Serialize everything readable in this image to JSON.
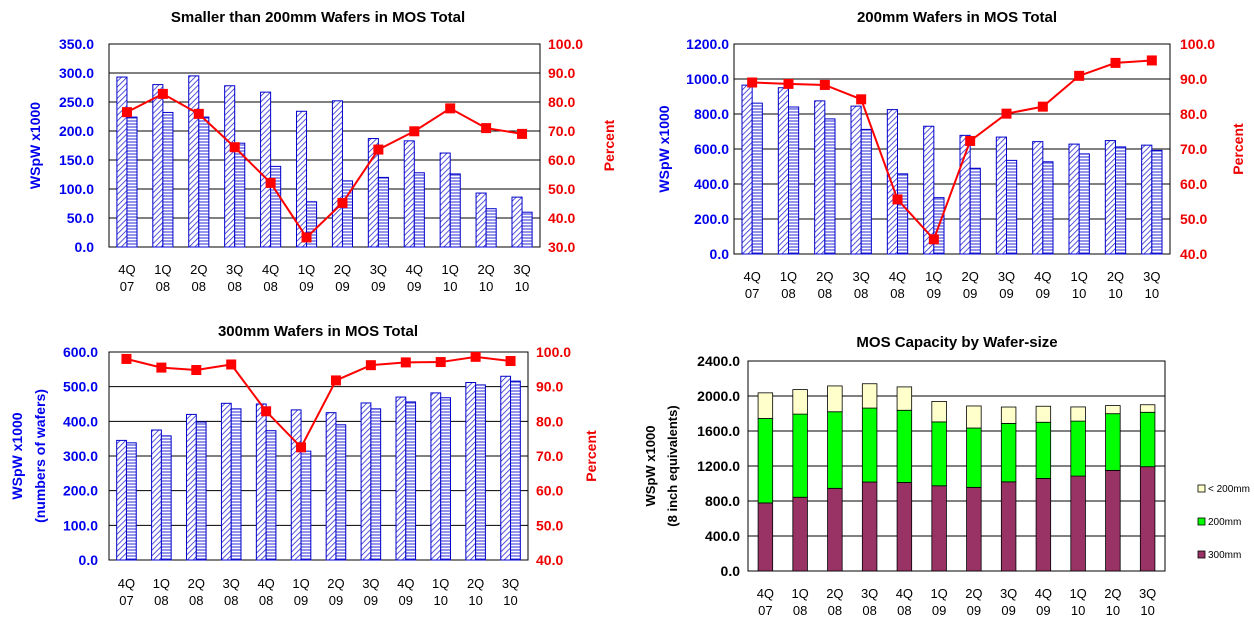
{
  "colors": {
    "bar_fill": "#ffffff",
    "bar_stroke": "#0000cc",
    "hatch": "#2a2ad6",
    "line": "#ff0000",
    "left_axis_text": "#0000ee",
    "right_axis_text": "#ee0000",
    "c300": "#993366",
    "c200": "#00ff00",
    "clt200": "#ffffcc"
  },
  "chart_data": [
    {
      "type": "bar",
      "title": "Smaller than 200mm Wafers in MOS Total",
      "ylabel": "WSpW x1000",
      "y2label": "Percent",
      "categories": [
        [
          "4Q",
          "07"
        ],
        [
          "1Q",
          "08"
        ],
        [
          "2Q",
          "08"
        ],
        [
          "3Q",
          "08"
        ],
        [
          "4Q",
          "08"
        ],
        [
          "1Q",
          "09"
        ],
        [
          "2Q",
          "09"
        ],
        [
          "3Q",
          "09"
        ],
        [
          "4Q",
          "09"
        ],
        [
          "1Q",
          "10"
        ],
        [
          "2Q",
          "10"
        ],
        [
          "3Q",
          "10"
        ]
      ],
      "ylim": [
        0,
        350
      ],
      "yticks": [
        "0.0",
        "50.0",
        "100.0",
        "150.0",
        "200.0",
        "250.0",
        "300.0",
        "350.0"
      ],
      "y2lim": [
        30,
        100
      ],
      "y2ticks": [
        "30.0",
        "40.0",
        "50.0",
        "60.0",
        "70.0",
        "80.0",
        "90.0",
        "100.0"
      ],
      "series": [
        {
          "kind": "bar",
          "hatch": "diag",
          "values": [
            293,
            280,
            295,
            278,
            267,
            234,
            252,
            187,
            183,
            162,
            93,
            86
          ]
        },
        {
          "kind": "bar",
          "hatch": "horiz",
          "values": [
            224,
            232,
            224,
            179,
            139,
            78,
            114,
            120,
            128,
            126,
            66,
            60
          ]
        },
        {
          "kind": "line",
          "axis": "right",
          "values": [
            76.5,
            82.8,
            75.9,
            64.4,
            52.1,
            33.3,
            45.2,
            63.6,
            69.9,
            77.8,
            71.0,
            69.0
          ]
        }
      ]
    },
    {
      "type": "bar",
      "title": "200mm Wafers in MOS Total",
      "ylabel": "WSpW x1000",
      "y2label": "Percent",
      "categories": [
        [
          "4Q",
          "07"
        ],
        [
          "1Q",
          "08"
        ],
        [
          "2Q",
          "08"
        ],
        [
          "3Q",
          "08"
        ],
        [
          "4Q",
          "08"
        ],
        [
          "1Q",
          "09"
        ],
        [
          "2Q",
          "09"
        ],
        [
          "3Q",
          "09"
        ],
        [
          "4Q",
          "09"
        ],
        [
          "1Q",
          "10"
        ],
        [
          "2Q",
          "10"
        ],
        [
          "3Q",
          "10"
        ]
      ],
      "ylim": [
        0,
        1200
      ],
      "yticks": [
        "0.0",
        "200.0",
        "400.0",
        "600.0",
        "800.0",
        "1000.0",
        "1200.0"
      ],
      "y2lim": [
        40,
        100
      ],
      "y2ticks": [
        "40.0",
        "50.0",
        "60.0",
        "70.0",
        "80.0",
        "90.0",
        "100.0"
      ],
      "series": [
        {
          "kind": "bar",
          "hatch": "diag",
          "values": [
            965,
            950,
            875,
            845,
            825,
            730,
            678,
            668,
            642,
            628,
            648,
            622
          ]
        },
        {
          "kind": "bar",
          "hatch": "horiz",
          "values": [
            862,
            840,
            772,
            712,
            458,
            322,
            490,
            535,
            527,
            572,
            612,
            592
          ]
        },
        {
          "kind": "line",
          "axis": "right",
          "values": [
            89.0,
            88.6,
            88.3,
            84.2,
            55.6,
            44.2,
            72.3,
            80.1,
            82.1,
            90.9,
            94.6,
            95.3
          ]
        }
      ]
    },
    {
      "type": "bar",
      "title": "300mm Wafers in MOS Total",
      "ylabel": "WSpW x1000",
      "ylabel2": "(numbers of wafers)",
      "y2label": "Percent",
      "categories": [
        [
          "4Q",
          "07"
        ],
        [
          "1Q",
          "08"
        ],
        [
          "2Q",
          "08"
        ],
        [
          "3Q",
          "08"
        ],
        [
          "4Q",
          "08"
        ],
        [
          "1Q",
          "09"
        ],
        [
          "2Q",
          "09"
        ],
        [
          "3Q",
          "09"
        ],
        [
          "4Q",
          "09"
        ],
        [
          "1Q",
          "10"
        ],
        [
          "2Q",
          "10"
        ],
        [
          "3Q",
          "10"
        ]
      ],
      "ylim": [
        0,
        600
      ],
      "yticks": [
        "0.0",
        "100.0",
        "200.0",
        "300.0",
        "400.0",
        "500.0",
        "600.0"
      ],
      "y2lim": [
        40,
        100
      ],
      "y2ticks": [
        "40.0",
        "50.0",
        "60.0",
        "70.0",
        "80.0",
        "90.0",
        "100.0"
      ],
      "series": [
        {
          "kind": "bar",
          "hatch": "diag",
          "values": [
            345,
            375,
            420,
            452,
            450,
            433,
            425,
            453,
            470,
            482,
            512,
            530
          ]
        },
        {
          "kind": "bar",
          "hatch": "horiz",
          "values": [
            338,
            358,
            398,
            436,
            373,
            314,
            390,
            436,
            456,
            468,
            505,
            516
          ]
        },
        {
          "kind": "line",
          "axis": "right",
          "values": [
            98.0,
            95.5,
            94.8,
            96.4,
            82.9,
            72.5,
            91.8,
            96.2,
            97.0,
            97.1,
            98.6,
            97.4
          ]
        }
      ]
    },
    {
      "type": "bar",
      "stacked": true,
      "title": "MOS Capacity by Wafer-size",
      "ylabel": "WSpW x1000",
      "ylabel2": "(8 inch equivalents)",
      "categories": [
        [
          "4Q",
          "07"
        ],
        [
          "1Q",
          "08"
        ],
        [
          "2Q",
          "08"
        ],
        [
          "3Q",
          "08"
        ],
        [
          "4Q",
          "08"
        ],
        [
          "1Q",
          "09"
        ],
        [
          "2Q",
          "09"
        ],
        [
          "3Q",
          "09"
        ],
        [
          "4Q",
          "09"
        ],
        [
          "1Q",
          "10"
        ],
        [
          "2Q",
          "10"
        ],
        [
          "3Q",
          "10"
        ]
      ],
      "ylim": [
        0,
        2400
      ],
      "yticks": [
        "0.0",
        "400.0",
        "800.0",
        "1200.0",
        "1600.0",
        "2000.0",
        "2400.0"
      ],
      "legend_position": "right",
      "series": [
        {
          "name": "300mm",
          "color": "#993366",
          "values": [
            778,
            843,
            945,
            1017,
            1012,
            974,
            956,
            1019,
            1058,
            1085,
            1150,
            1192
          ]
        },
        {
          "name": "200mm",
          "color": "#00ff00",
          "values": [
            965,
            950,
            875,
            845,
            825,
            730,
            678,
            668,
            642,
            628,
            648,
            622
          ]
        },
        {
          "name": "< 200mm",
          "color": "#ffffcc",
          "values": [
            293,
            280,
            295,
            278,
            267,
            234,
            252,
            187,
            183,
            162,
            93,
            86
          ]
        }
      ]
    }
  ]
}
